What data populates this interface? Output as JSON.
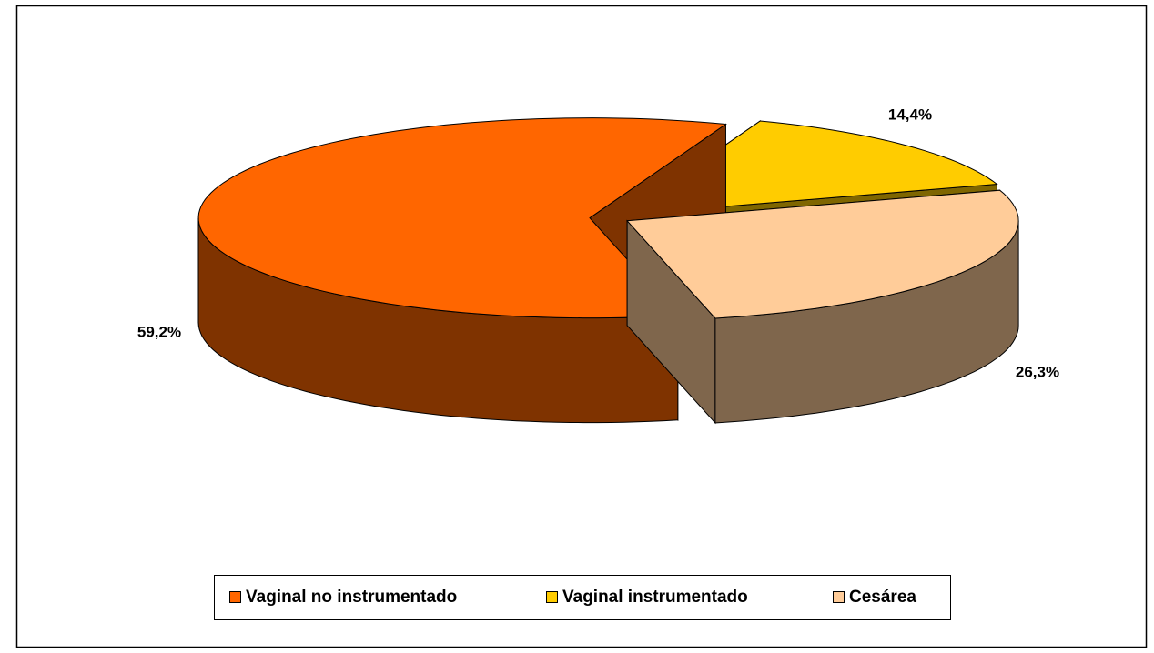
{
  "chart_data": {
    "type": "pie3d",
    "categories": [
      "Vaginal no instrumentado",
      "Vaginal instrumentado",
      "Cesárea"
    ],
    "values": [
      59.2,
      14.4,
      26.3
    ],
    "value_labels": [
      "59,2%",
      "14,4%",
      "26,3%"
    ],
    "colors": [
      "#FF6600",
      "#FFCC00",
      "#FFCC99"
    ],
    "legend": "bottom"
  }
}
